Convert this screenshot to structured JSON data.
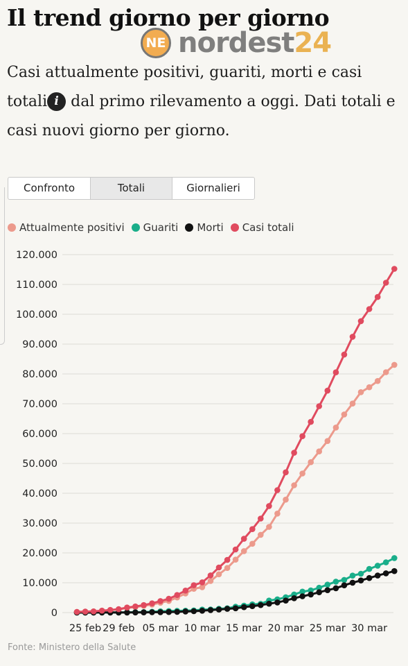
{
  "header": {
    "title": "Il trend giorno per giorno",
    "subtitle_part1": "Casi attualmente positivi, guariti, morti e casi totali",
    "subtitle_part2": " dal primo rilevamento a oggi. Dati totali e casi nuovi giorno per giorno.",
    "info_icon_glyph": "i"
  },
  "watermark": {
    "logo_text": "NE",
    "text_part1": "nordest",
    "text_part2": "24"
  },
  "tabs": [
    {
      "label": "Confronto",
      "active": false
    },
    {
      "label": "Totali",
      "active": true
    },
    {
      "label": "Giornalieri",
      "active": false
    }
  ],
  "source": "Fonte: Ministero della Salute",
  "chart_data": {
    "type": "line",
    "ylim": [
      0,
      120000
    ],
    "yticks": [
      0,
      10000,
      20000,
      30000,
      40000,
      50000,
      60000,
      70000,
      80000,
      90000,
      100000,
      110000,
      120000
    ],
    "ytick_labels": [
      "0",
      "10.000",
      "20.000",
      "30.000",
      "40.000",
      "50.000",
      "60.000",
      "70.000",
      "80.000",
      "90.000",
      "100.000",
      "110.000",
      "120.000"
    ],
    "x": [
      "24 feb",
      "25 feb",
      "26 feb",
      "27 feb",
      "28 feb",
      "29 feb",
      "01 mar",
      "02 mar",
      "03 mar",
      "04 mar",
      "05 mar",
      "06 mar",
      "07 mar",
      "08 mar",
      "09 mar",
      "10 mar",
      "11 mar",
      "12 mar",
      "13 mar",
      "14 mar",
      "15 mar",
      "16 mar",
      "17 mar",
      "18 mar",
      "19 mar",
      "20 mar",
      "21 mar",
      "22 mar",
      "23 mar",
      "24 mar",
      "25 mar",
      "26 mar",
      "27 mar",
      "28 mar",
      "29 mar",
      "30 mar",
      "31 mar",
      "01 apr",
      "02 apr"
    ],
    "xtick_labels": [
      "25 feb",
      "29 feb",
      "05 mar",
      "10 mar",
      "15 mar",
      "20 mar",
      "25 mar",
      "30 mar"
    ],
    "grid": true,
    "legend_position": "top-left",
    "series": [
      {
        "name": "Attualmente positivi",
        "color": "#ec9a8c",
        "values": [
          221,
          311,
          385,
          588,
          821,
          1049,
          1577,
          1835,
          2263,
          2706,
          3296,
          3916,
          5061,
          6387,
          7985,
          8514,
          10590,
          12839,
          14955,
          17750,
          20603,
          23073,
          26062,
          28710,
          33190,
          37860,
          42681,
          46638,
          50418,
          54030,
          57521,
          62013,
          66414,
          70065,
          73880,
          75528,
          77635,
          80572,
          83049
        ]
      },
      {
        "name": "Guariti",
        "color": "#1aae8a",
        "values": [
          1,
          1,
          3,
          45,
          46,
          50,
          83,
          149,
          160,
          276,
          414,
          523,
          589,
          622,
          724,
          1004,
          1045,
          1258,
          1439,
          1966,
          2335,
          2749,
          2941,
          4025,
          4440,
          5129,
          6072,
          7024,
          7432,
          8326,
          9362,
          10361,
          10950,
          12384,
          13030,
          14620,
          15729,
          16847,
          18278
        ]
      },
      {
        "name": "Morti",
        "color": "#111111",
        "values": [
          7,
          10,
          12,
          17,
          21,
          29,
          34,
          52,
          79,
          107,
          148,
          197,
          233,
          366,
          463,
          631,
          827,
          1016,
          1266,
          1441,
          1809,
          2158,
          2503,
          2978,
          3405,
          4032,
          4825,
          5476,
          6077,
          6820,
          7503,
          8165,
          9134,
          10023,
          10779,
          11591,
          12428,
          13155,
          13915
        ]
      },
      {
        "name": "Casi totali",
        "color": "#e04b5f",
        "values": [
          229,
          322,
          400,
          650,
          888,
          1128,
          1694,
          2036,
          2502,
          3089,
          3858,
          4636,
          5883,
          7375,
          9172,
          10149,
          12462,
          15113,
          17660,
          21157,
          24747,
          27980,
          31506,
          35713,
          41035,
          47021,
          53578,
          59138,
          63927,
          69176,
          74386,
          80539,
          86498,
          92472,
          97689,
          101739,
          105792,
          110574,
          115242
        ]
      }
    ]
  }
}
